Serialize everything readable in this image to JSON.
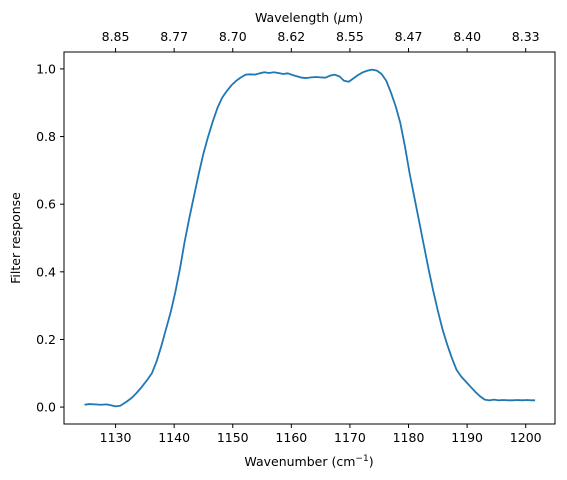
{
  "chart_data": {
    "type": "line",
    "xlabel": "Wavenumber (cm",
    "xlabel_sup": "−1",
    "xlabel_suffix": ")",
    "ylabel": "Filter response",
    "top_xlabel": "Wavelength (",
    "top_xlabel_mu": "μ",
    "top_xlabel_suffix": "m)",
    "xlim": [
      1121.2,
      1205.0
    ],
    "ylim": [
      -0.05,
      1.05
    ],
    "x_ticks": [
      1130,
      1140,
      1150,
      1160,
      1170,
      1180,
      1190,
      1200
    ],
    "y_ticks": [
      0.0,
      0.2,
      0.4,
      0.6,
      0.8,
      1.0
    ],
    "top_ticks": [
      "8.85",
      "8.77",
      "8.70",
      "8.62",
      "8.55",
      "8.47",
      "8.40",
      "8.33"
    ],
    "top_ticks_at_wavenumber": [
      1130,
      1140,
      1150,
      1160,
      1170,
      1180,
      1190,
      1200
    ],
    "line_color": "#1f77b4",
    "grid": false,
    "series": [
      {
        "x": [
          1124.7,
          1125.5,
          1126.5,
          1127.5,
          1128.5,
          1129.3,
          1130.0,
          1130.8,
          1131.8,
          1132.8,
          1133.6,
          1134.4,
          1135.3,
          1136.2,
          1137.0,
          1137.8,
          1138.6,
          1139.4,
          1140.2,
          1141.0,
          1141.8,
          1142.6,
          1143.4,
          1144.2,
          1145.0,
          1145.8,
          1146.6,
          1147.4,
          1148.2,
          1149.0,
          1149.8,
          1150.6,
          1151.4,
          1152.2,
          1153.0,
          1153.8,
          1154.6,
          1155.4,
          1156.2,
          1157.0,
          1157.8,
          1158.6,
          1159.4,
          1160.2,
          1161.0,
          1161.8,
          1162.6,
          1163.4,
          1164.2,
          1165.0,
          1165.8,
          1166.6,
          1167.4,
          1168.2,
          1169.0,
          1169.8,
          1170.6,
          1171.4,
          1172.2,
          1173.0,
          1173.8,
          1174.6,
          1175.4,
          1176.2,
          1177.0,
          1177.8,
          1178.6,
          1179.4,
          1180.2,
          1181.0,
          1181.8,
          1182.6,
          1183.4,
          1184.2,
          1185.0,
          1185.8,
          1186.6,
          1187.4,
          1188.2,
          1189.0,
          1189.8,
          1190.6,
          1191.4,
          1192.2,
          1193.0,
          1193.8,
          1194.6,
          1195.4,
          1196.2,
          1197.0,
          1197.8,
          1198.6,
          1199.4,
          1200.2,
          1201.0,
          1201.6
        ],
        "y": [
          0.007,
          0.009,
          0.008,
          0.007,
          0.008,
          0.005,
          0.002,
          0.004,
          0.015,
          0.028,
          0.042,
          0.058,
          0.078,
          0.1,
          0.135,
          0.18,
          0.23,
          0.28,
          0.34,
          0.41,
          0.49,
          0.56,
          0.625,
          0.69,
          0.75,
          0.8,
          0.845,
          0.885,
          0.915,
          0.935,
          0.952,
          0.965,
          0.975,
          0.983,
          0.984,
          0.983,
          0.987,
          0.99,
          0.988,
          0.99,
          0.988,
          0.985,
          0.987,
          0.982,
          0.978,
          0.974,
          0.973,
          0.975,
          0.976,
          0.975,
          0.974,
          0.98,
          0.983,
          0.978,
          0.965,
          0.962,
          0.972,
          0.982,
          0.99,
          0.995,
          0.998,
          0.995,
          0.985,
          0.965,
          0.93,
          0.89,
          0.84,
          0.77,
          0.69,
          0.62,
          0.55,
          0.48,
          0.41,
          0.345,
          0.285,
          0.23,
          0.185,
          0.145,
          0.11,
          0.09,
          0.075,
          0.06,
          0.045,
          0.032,
          0.022,
          0.02,
          0.022,
          0.02,
          0.021,
          0.02,
          0.02,
          0.021,
          0.02,
          0.021,
          0.02,
          0.02
        ]
      }
    ]
  }
}
